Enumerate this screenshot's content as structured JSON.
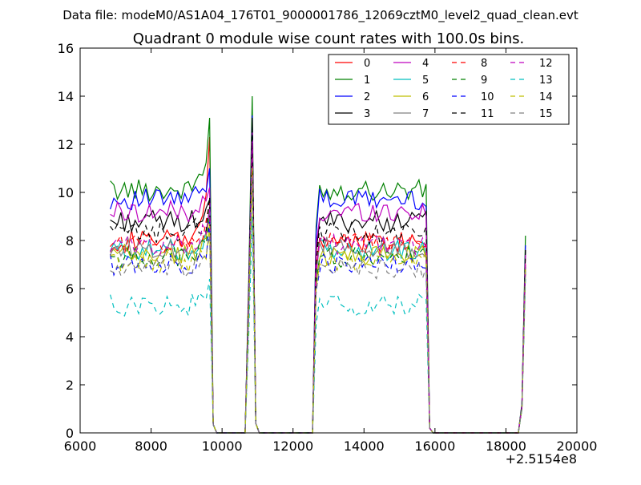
{
  "chart_data": {
    "type": "line",
    "suptitle": "Data file: modeM0/AS1A04_176T01_9000001786_12069cztM0_level2_quad_clean.evt",
    "title": "Quadrant 0 module wise count rates with 100.0s bins.",
    "xlabel": "",
    "ylabel": "",
    "x_offset_label": "+2.5154e8",
    "xlim": [
      6000,
      20000
    ],
    "ylim": [
      0,
      16
    ],
    "x_ticks": [
      6000,
      8000,
      10000,
      12000,
      14000,
      16000,
      18000,
      20000
    ],
    "y_ticks": [
      0,
      2,
      4,
      6,
      8,
      10,
      12,
      14,
      16
    ],
    "grid": false,
    "legend_position": "top-right",
    "legend_columns": 4,
    "segments": [
      {
        "x_start": 6850,
        "x_end": 9650,
        "type": "plateau"
      },
      {
        "x_start": 9650,
        "x_end": 10650,
        "type": "gap"
      },
      {
        "x_start": 10650,
        "x_end": 11050,
        "type": "spike",
        "peak_x": 10850
      },
      {
        "x_start": 11050,
        "x_end": 12550,
        "type": "gap"
      },
      {
        "x_start": 12550,
        "x_end": 15850,
        "type": "plateau"
      },
      {
        "x_start": 15850,
        "x_end": 18350,
        "type": "gap"
      },
      {
        "x_start": 18350,
        "x_end": 18550,
        "type": "rise"
      }
    ],
    "series": [
      {
        "name": "0",
        "color": "#ff0000",
        "dash": "solid",
        "level": 8.0,
        "peak1": 12.3,
        "peak2": 12.3,
        "end": 7.0
      },
      {
        "name": "1",
        "color": "#008000",
        "dash": "solid",
        "level": 10.1,
        "peak1": 13.1,
        "peak2": 14.0,
        "end": 8.2
      },
      {
        "name": "2",
        "color": "#0000ff",
        "dash": "solid",
        "level": 9.7,
        "peak1": 11.0,
        "peak2": 13.2,
        "end": 7.8
      },
      {
        "name": "3",
        "color": "#000000",
        "dash": "solid",
        "level": 8.8,
        "peak1": 9.7,
        "peak2": 13.1,
        "end": 7.6
      },
      {
        "name": "4",
        "color": "#bf00bf",
        "dash": "solid",
        "level": 9.2,
        "peak1": 10.2,
        "peak2": 12.5,
        "end": 7.4
      },
      {
        "name": "5",
        "color": "#00bfbf",
        "dash": "solid",
        "level": 7.6,
        "peak1": 9.2,
        "peak2": 11.5,
        "end": 7.0
      },
      {
        "name": "6",
        "color": "#bfbf00",
        "dash": "solid",
        "level": 7.4,
        "peak1": 9.0,
        "peak2": 11.2,
        "end": 6.8
      },
      {
        "name": "7",
        "color": "#808080",
        "dash": "solid",
        "level": 7.7,
        "peak1": 9.4,
        "peak2": 11.8,
        "end": 7.0
      },
      {
        "name": "8",
        "color": "#ff0000",
        "dash": "dashed",
        "level": 7.9,
        "peak1": 9.6,
        "peak2": 12.0,
        "end": 7.2
      },
      {
        "name": "9",
        "color": "#008000",
        "dash": "dashed",
        "level": 7.3,
        "peak1": 9.0,
        "peak2": 11.4,
        "end": 6.9
      },
      {
        "name": "10",
        "color": "#0000ff",
        "dash": "dashed",
        "level": 7.0,
        "peak1": 8.8,
        "peak2": 11.0,
        "end": 6.9
      },
      {
        "name": "11",
        "color": "#000000",
        "dash": "dashed",
        "level": 8.3,
        "peak1": 9.8,
        "peak2": 12.8,
        "end": 7.6
      },
      {
        "name": "12",
        "color": "#bf00bf",
        "dash": "dashed",
        "level": 7.8,
        "peak1": 9.3,
        "peak2": 12.0,
        "end": 7.1
      },
      {
        "name": "13",
        "color": "#00bfbf",
        "dash": "dashed",
        "level": 5.3,
        "peak1": 6.4,
        "peak2": 9.0,
        "end": 6.4
      },
      {
        "name": "14",
        "color": "#bfbf00",
        "dash": "dashed",
        "level": 7.1,
        "peak1": 8.6,
        "peak2": 11.0,
        "end": 6.8
      },
      {
        "name": "15",
        "color": "#808080",
        "dash": "dashed",
        "level": 6.8,
        "peak1": 8.2,
        "peak2": 10.6,
        "end": 6.7
      }
    ]
  }
}
